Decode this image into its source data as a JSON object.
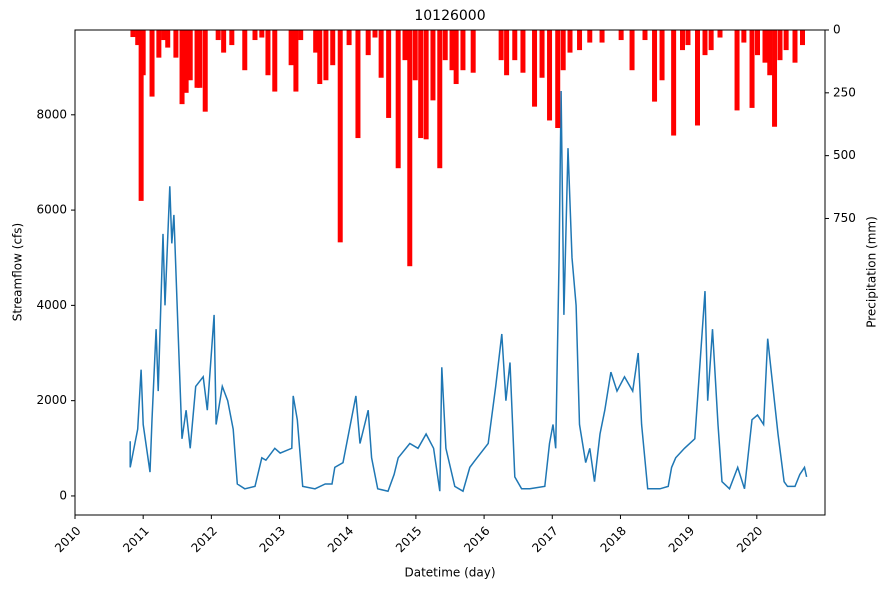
{
  "chart_data": {
    "type": "line",
    "title": "10126000",
    "xlabel": "Datetime (day)",
    "ylabel": "Streamflow (cfs)",
    "y2label": "Precipitation (mm)",
    "xlim": [
      2010,
      2021
    ],
    "xticks": [
      2010,
      2011,
      2012,
      2013,
      2014,
      2015,
      2016,
      2017,
      2018,
      2019,
      2020
    ],
    "ylim": [
      -400,
      9780
    ],
    "yticks": [
      0,
      2000,
      4000,
      6000,
      8000
    ],
    "y2lim": [
      1930,
      0
    ],
    "y2ticks": [
      0,
      250,
      500,
      750
    ],
    "series": [
      {
        "type": "line",
        "color": "#1f77b4",
        "x": [
          2010.81,
          2010.81,
          2010.92,
          2010.97,
          2011.0,
          2011.1,
          2011.13,
          2011.19,
          2011.22,
          2011.29,
          2011.32,
          2011.39,
          2011.42,
          2011.45,
          2011.51,
          2011.57,
          2011.63,
          2011.69,
          2011.77,
          2011.88,
          2011.94,
          2012.04,
          2012.07,
          2012.16,
          2012.24,
          2012.32,
          2012.38,
          2012.49,
          2012.64,
          2012.74,
          2012.8,
          2012.93,
          2013.01,
          2013.18,
          2013.2,
          2013.26,
          2013.34,
          2013.52,
          2013.67,
          2013.77,
          2013.81,
          2013.93,
          2014.12,
          2014.18,
          2014.3,
          2014.35,
          2014.44,
          2014.59,
          2014.68,
          2014.74,
          2014.91,
          2015.03,
          2015.15,
          2015.26,
          2015.35,
          2015.38,
          2015.44,
          2015.57,
          2015.69,
          2015.79,
          2015.87,
          2016.06,
          2016.17,
          2016.26,
          2016.32,
          2016.38,
          2016.45,
          2016.55,
          2016.67,
          2016.89,
          2016.96,
          2017.01,
          2017.05,
          2017.1,
          2017.13,
          2017.17,
          2017.23,
          2017.29,
          2017.35,
          2017.4,
          2017.49,
          2017.55,
          2017.62,
          2017.7,
          2017.77,
          2017.86,
          2017.95,
          2018.06,
          2018.18,
          2018.26,
          2018.31,
          2018.4,
          2018.58,
          2018.7,
          2018.75,
          2018.81,
          2018.94,
          2019.09,
          2019.24,
          2019.28,
          2019.35,
          2019.43,
          2019.49,
          2019.6,
          2019.72,
          2019.82,
          2019.93,
          2020.01,
          2020.1,
          2020.16,
          2020.22,
          2020.31,
          2020.4,
          2020.45,
          2020.56,
          2020.63,
          2020.7,
          2020.73
        ],
        "values": [
          1150,
          600,
          1400,
          2650,
          1500,
          500,
          1600,
          3500,
          2200,
          5500,
          4000,
          6500,
          5300,
          5900,
          3500,
          1200,
          1800,
          1000,
          2300,
          2500,
          1800,
          3800,
          1500,
          2300,
          2000,
          1400,
          250,
          150,
          200,
          800,
          750,
          1000,
          900,
          1000,
          2100,
          1600,
          200,
          150,
          250,
          250,
          600,
          700,
          2100,
          1100,
          1800,
          800,
          150,
          100,
          450,
          800,
          1100,
          1000,
          1300,
          1000,
          100,
          2700,
          1000,
          200,
          100,
          600,
          750,
          1100,
          2300,
          3400,
          2000,
          2800,
          400,
          150,
          150,
          200,
          1100,
          1500,
          1000,
          5000,
          8500,
          3800,
          7300,
          5000,
          4000,
          1500,
          700,
          1000,
          300,
          1300,
          1800,
          2600,
          2200,
          2500,
          2200,
          3000,
          1500,
          150,
          150,
          200,
          600,
          800,
          1000,
          1200,
          4300,
          2000,
          3500,
          1500,
          300,
          150,
          600,
          150,
          1600,
          1700,
          1500,
          3300,
          2500,
          1300,
          300,
          200,
          200,
          450,
          600,
          400
        ]
      },
      {
        "type": "bar",
        "color": "#ff0000",
        "axis": "y2",
        "x": [
          2010.85,
          2010.92,
          2010.97,
          2011.0,
          2011.13,
          2011.23,
          2011.3,
          2011.36,
          2011.48,
          2011.57,
          2011.63,
          2011.69,
          2011.79,
          2011.83,
          2011.91,
          2012.1,
          2012.18,
          2012.3,
          2012.49,
          2012.64,
          2012.74,
          2012.83,
          2012.93,
          2013.17,
          2013.24,
          2013.31,
          2013.53,
          2013.59,
          2013.68,
          2013.78,
          2013.89,
          2014.02,
          2014.15,
          2014.3,
          2014.4,
          2014.49,
          2014.6,
          2014.74,
          2014.84,
          2014.91,
          2014.99,
          2015.07,
          2015.15,
          2015.25,
          2015.35,
          2015.43,
          2015.53,
          2015.59,
          2015.69,
          2015.84,
          2016.25,
          2016.33,
          2016.45,
          2016.57,
          2016.74,
          2016.85,
          2016.96,
          2017.08,
          2017.16,
          2017.26,
          2017.4,
          2017.55,
          2017.73,
          2018.01,
          2018.17,
          2018.36,
          2018.5,
          2018.61,
          2018.78,
          2018.91,
          2018.99,
          2019.13,
          2019.24,
          2019.33,
          2019.46,
          2019.71,
          2019.81,
          2019.93,
          2020.01,
          2020.12,
          2020.19,
          2020.26,
          2020.34,
          2020.43,
          2020.56,
          2020.67
        ],
        "values": [
          28,
          60,
          680,
          180,
          265,
          110,
          40,
          70,
          110,
          295,
          250,
          200,
          230,
          230,
          325,
          40,
          90,
          60,
          160,
          40,
          30,
          180,
          245,
          140,
          245,
          40,
          90,
          215,
          200,
          140,
          845,
          60,
          430,
          100,
          30,
          190,
          350,
          550,
          120,
          940,
          200,
          430,
          435,
          280,
          550,
          120,
          160,
          215,
          160,
          170,
          120,
          180,
          120,
          170,
          305,
          190,
          360,
          390,
          160,
          90,
          80,
          50,
          50,
          40,
          160,
          40,
          285,
          200,
          420,
          80,
          60,
          380,
          100,
          80,
          30,
          320,
          50,
          310,
          100,
          130,
          180,
          385,
          120,
          80,
          130,
          60
        ]
      }
    ]
  }
}
